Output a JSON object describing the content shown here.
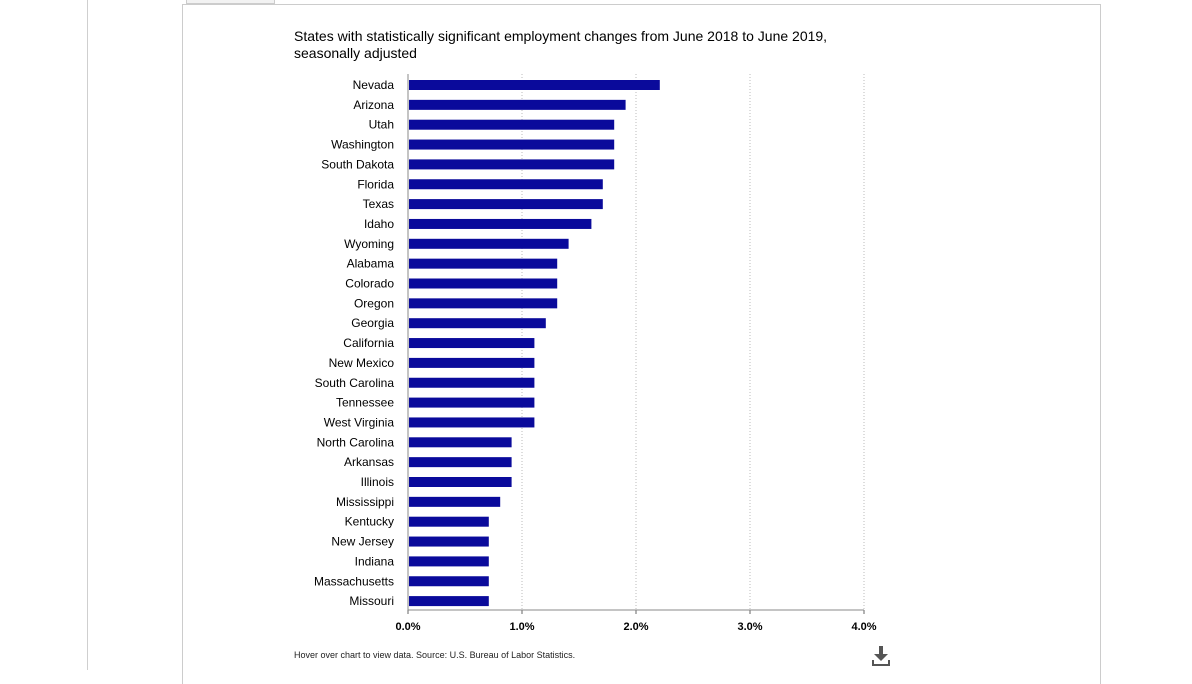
{
  "chart_data": {
    "type": "bar",
    "orientation": "horizontal",
    "title": "States with statistically significant employment changes from June 2018 to June 2019, seasonally adjusted",
    "xlabel": "",
    "ylabel": "",
    "xlim": [
      0,
      4
    ],
    "x_ticks": [
      "0.0%",
      "1.0%",
      "2.0%",
      "3.0%",
      "4.0%"
    ],
    "grid": "vertical dotted",
    "bar_color": "#0a0a9b",
    "categories": [
      "Nevada",
      "Arizona",
      "Utah",
      "Washington",
      "South Dakota",
      "Florida",
      "Texas",
      "Idaho",
      "Wyoming",
      "Alabama",
      "Colorado",
      "Oregon",
      "Georgia",
      "California",
      "New Mexico",
      "South Carolina",
      "Tennessee",
      "West Virginia",
      "North Carolina",
      "Arkansas",
      "Illinois",
      "Mississippi",
      "Kentucky",
      "New Jersey",
      "Indiana",
      "Massachusetts",
      "Missouri"
    ],
    "values": [
      2.2,
      1.9,
      1.8,
      1.8,
      1.8,
      1.7,
      1.7,
      1.6,
      1.4,
      1.3,
      1.3,
      1.3,
      1.2,
      1.1,
      1.1,
      1.1,
      1.1,
      1.1,
      0.9,
      0.9,
      0.9,
      0.8,
      0.7,
      0.7,
      0.7,
      0.7,
      0.7
    ]
  },
  "footnote": "Hover over chart to view data. Source: U.S. Bureau of Labor Statistics.",
  "download_icon": "download-icon"
}
